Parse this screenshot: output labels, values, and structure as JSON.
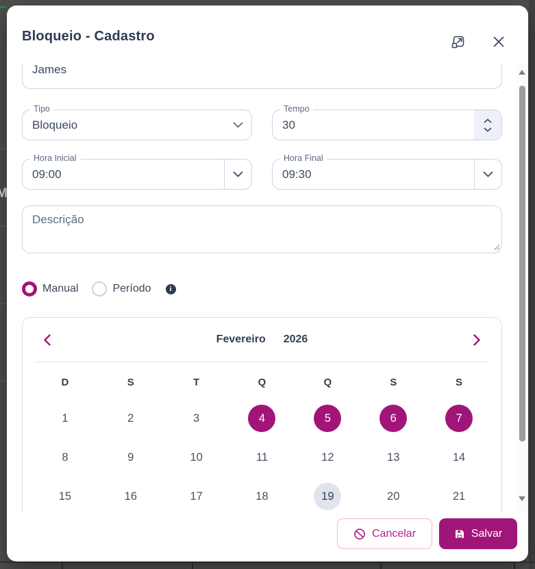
{
  "background_page": {
    "visible_text_fragment": "M"
  },
  "dialog": {
    "title": "Bloqueio - Cadastro",
    "header_icons": {
      "expand": "open-in-full-icon",
      "close": "close-icon"
    },
    "fields": {
      "name": {
        "value": "James"
      },
      "tipo": {
        "label": "Tipo",
        "value": "Bloqueio"
      },
      "tempo": {
        "label": "Tempo",
        "value": "30"
      },
      "hora_inicial": {
        "label": "Hora Inicial",
        "value": "09:00"
      },
      "hora_final": {
        "label": "Hora Final",
        "value": "09:30"
      },
      "descricao": {
        "placeholder": "Descrição"
      }
    },
    "mode": {
      "options": [
        {
          "label": "Manual",
          "selected": true
        },
        {
          "label": "Período",
          "selected": false
        }
      ]
    },
    "calendar": {
      "month": "Fevereiro",
      "year": "2026",
      "weekdays": [
        "D",
        "S",
        "T",
        "Q",
        "Q",
        "S",
        "S"
      ],
      "days": [
        "1",
        "2",
        "3",
        "4",
        "5",
        "6",
        "7",
        "8",
        "9",
        "10",
        "11",
        "12",
        "13",
        "14",
        "15",
        "16",
        "17",
        "18",
        "19",
        "20",
        "21"
      ],
      "selected_days": [
        "4",
        "5",
        "6",
        "7"
      ],
      "highlighted_day": "19"
    },
    "footer": {
      "cancel_label": "Cancelar",
      "save_label": "Salvar"
    },
    "colors": {
      "accent": "#A21578",
      "text": "#2F3B54",
      "selected_day_bg": "#A21578",
      "highlighted_day_bg": "#DFE4EE",
      "cancel_border": "#F0B6DA",
      "cancel_text": "#B5208D"
    }
  }
}
